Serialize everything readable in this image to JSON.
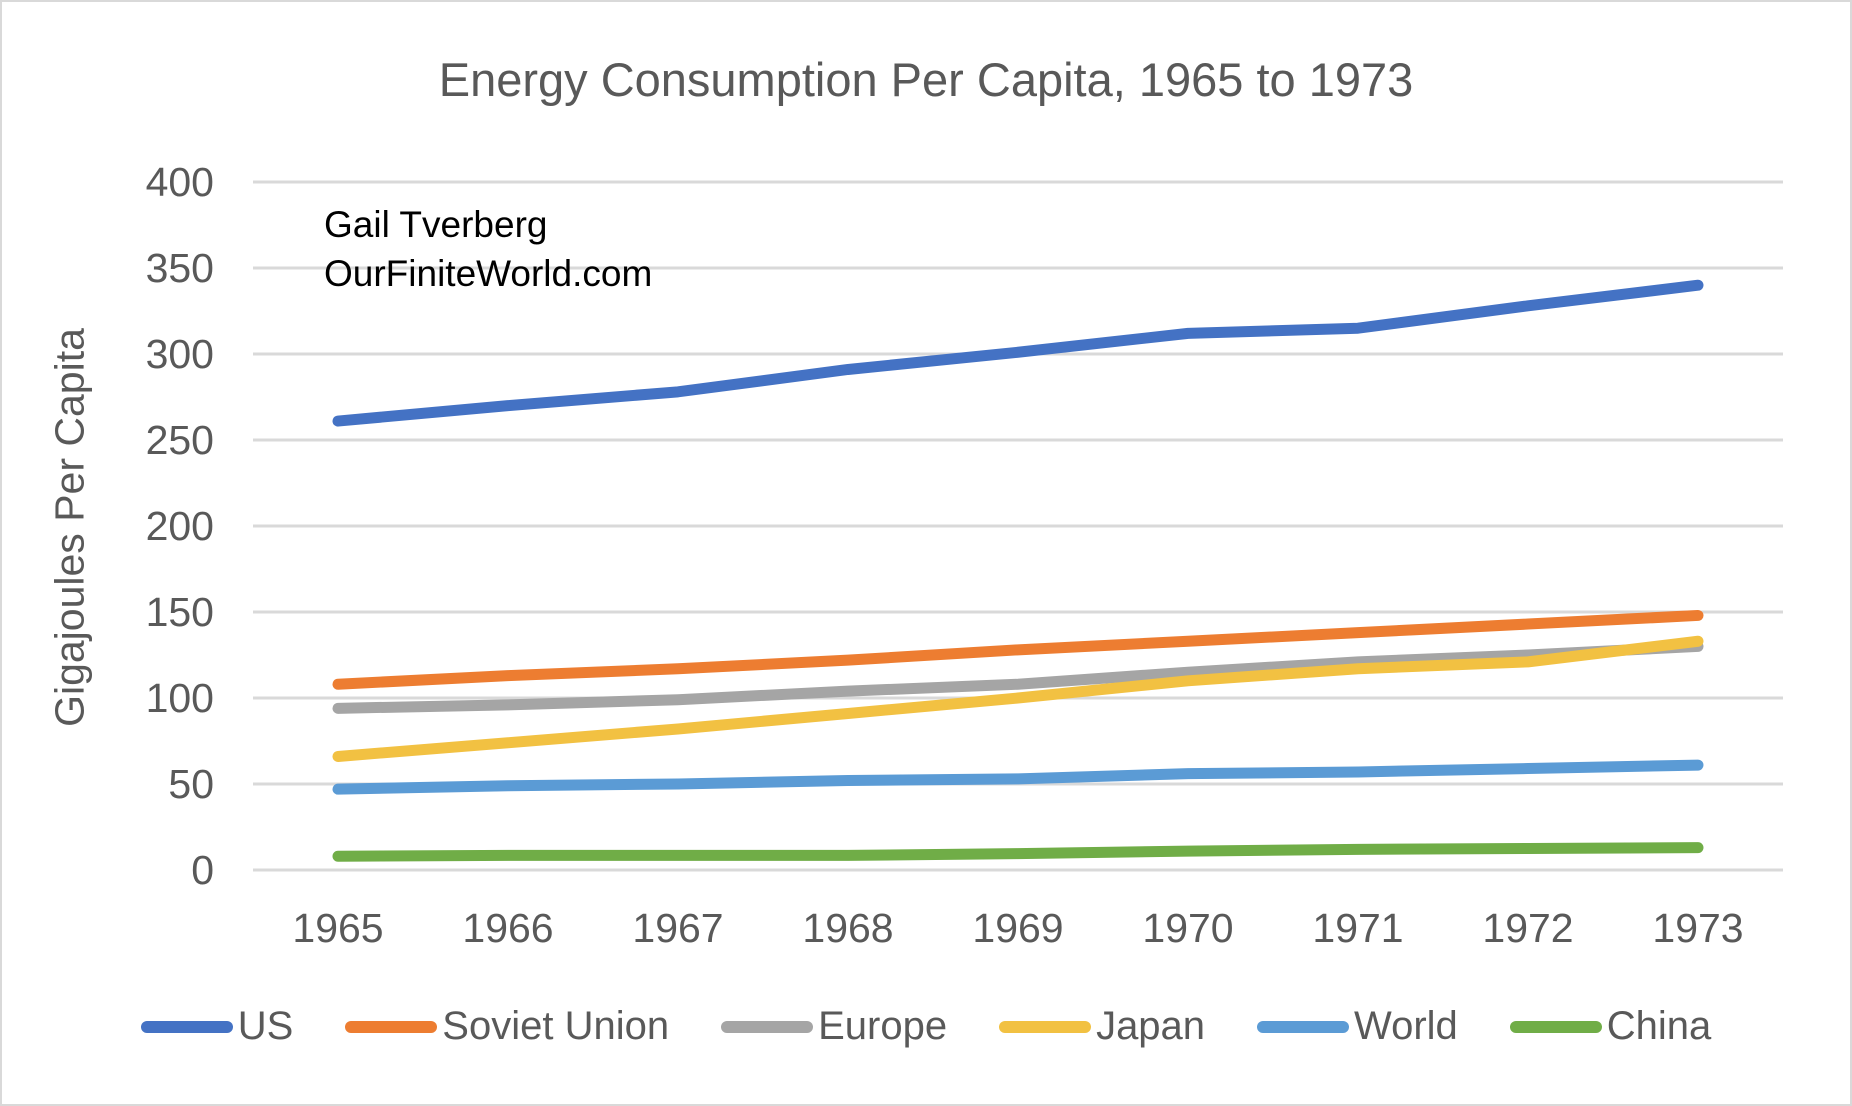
{
  "title": "Energy Consumption Per Capita, 1965 to 1973",
  "annotation": {
    "line1": "Gail Tverberg",
    "line2": "OurFiniteWorld.com"
  },
  "y_axis_title": "Gigajoules Per Capita",
  "colors": {
    "background": "#FFFFFF",
    "grid": "#D9D9D9",
    "axis_text": "#595959",
    "title_text": "#595959",
    "annotation_text": "#000000"
  },
  "chart_data": {
    "type": "line",
    "title": "Energy Consumption Per Capita, 1965 to 1973",
    "xlabel": "",
    "ylabel": "Gigajoules Per Capita",
    "x": [
      1965,
      1966,
      1967,
      1968,
      1969,
      1970,
      1971,
      1972,
      1973
    ],
    "ylim": [
      0,
      400
    ],
    "yticks": [
      0,
      50,
      100,
      150,
      200,
      250,
      300,
      350,
      400
    ],
    "grid": true,
    "legend_position": "bottom",
    "series": [
      {
        "name": "US",
        "color": "#4472C4",
        "values": [
          261,
          270,
          278,
          291,
          301,
          312,
          315,
          328,
          340
        ]
      },
      {
        "name": "Soviet Union",
        "color": "#ED7D31",
        "values": [
          108,
          113,
          117,
          122,
          128,
          133,
          138,
          143,
          148
        ]
      },
      {
        "name": "Europe",
        "color": "#A5A5A5",
        "values": [
          94,
          96,
          99,
          104,
          108,
          115,
          121,
          125,
          130
        ]
      },
      {
        "name": "Japan",
        "color": "#F2C142",
        "values": [
          66,
          74,
          82,
          91,
          100,
          110,
          117,
          121,
          133
        ]
      },
      {
        "name": "World",
        "color": "#5B9BD5",
        "values": [
          47,
          49,
          50,
          52,
          53,
          56,
          57,
          59,
          61
        ]
      },
      {
        "name": "China",
        "color": "#70AD47",
        "values": [
          8,
          8.5,
          8.5,
          8.5,
          9.5,
          11,
          12,
          12.5,
          13
        ]
      }
    ]
  }
}
